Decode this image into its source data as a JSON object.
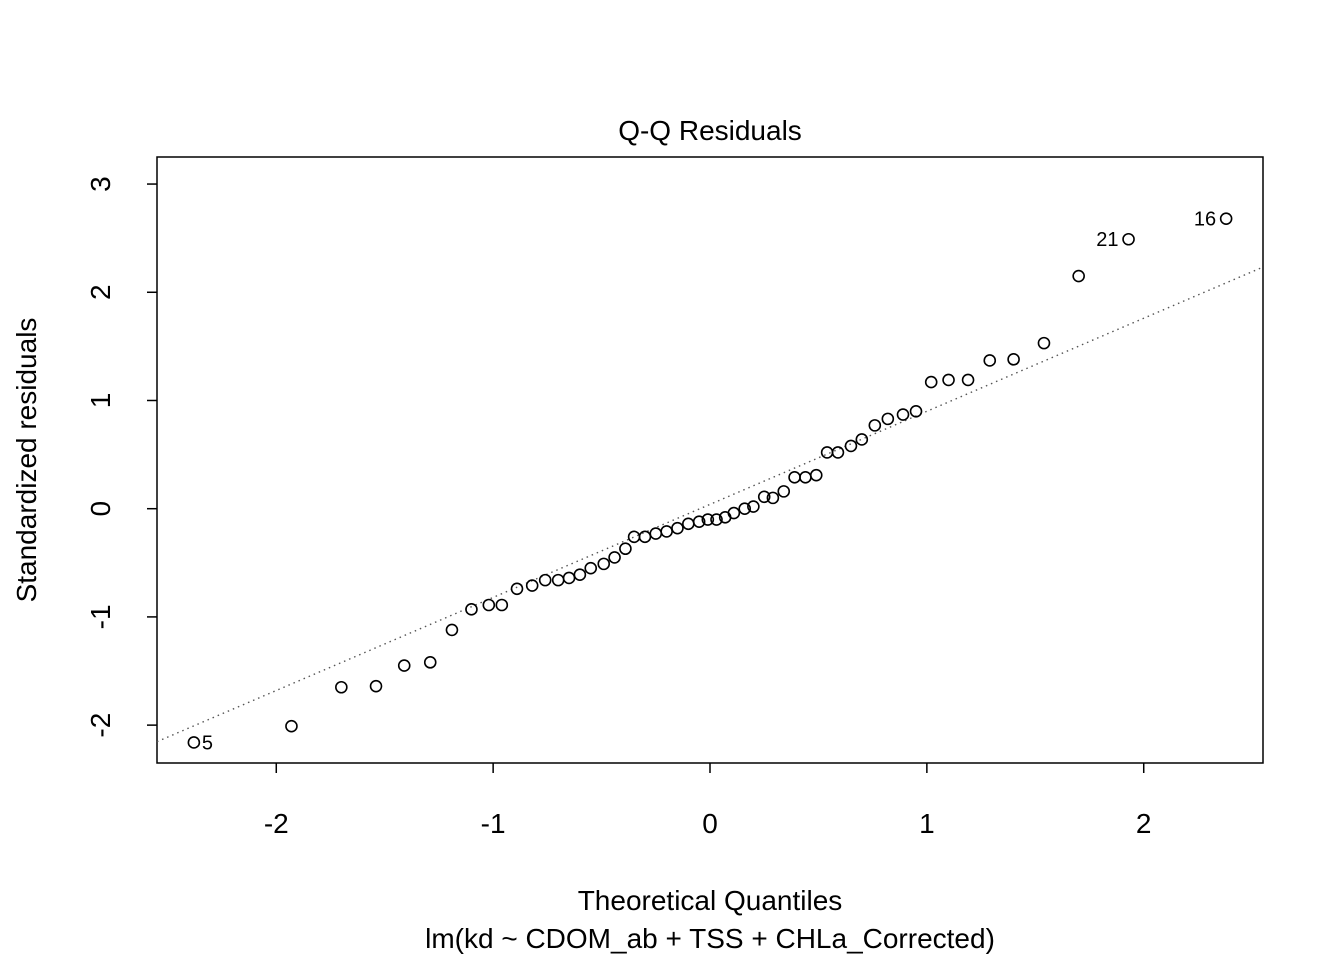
{
  "chart_data": {
    "type": "scatter",
    "title": "Q-Q Residuals",
    "xlabel": "Theoretical Quantiles",
    "subtitle": "lm(kd ~ CDOM_ab + TSS + CHLa_Corrected)",
    "ylabel": "Standardized residuals",
    "xlim": [
      -2.55,
      2.55
    ],
    "ylim": [
      -2.35,
      3.25
    ],
    "x_ticks": [
      -2,
      -1,
      0,
      1,
      2
    ],
    "y_ticks": [
      -2,
      -1,
      0,
      1,
      2,
      3
    ],
    "x_tick_labels": [
      "-2",
      "-1",
      "0",
      "1",
      "2"
    ],
    "y_tick_labels": [
      "-2",
      "-1",
      "0",
      "1",
      "2",
      "3"
    ],
    "grid": false,
    "reference_line": {
      "style": "dotted",
      "color": "#555555",
      "intercept": 0.04,
      "slope": 0.86
    },
    "points": [
      {
        "x": -2.38,
        "y": -2.16,
        "label": "5"
      },
      {
        "x": -1.93,
        "y": -2.01
      },
      {
        "x": -1.7,
        "y": -1.65
      },
      {
        "x": -1.54,
        "y": -1.64
      },
      {
        "x": -1.41,
        "y": -1.45
      },
      {
        "x": -1.29,
        "y": -1.42
      },
      {
        "x": -1.19,
        "y": -1.12
      },
      {
        "x": -1.1,
        "y": -0.93
      },
      {
        "x": -1.02,
        "y": -0.89
      },
      {
        "x": -0.96,
        "y": -0.89
      },
      {
        "x": -0.89,
        "y": -0.74
      },
      {
        "x": -0.82,
        "y": -0.71
      },
      {
        "x": -0.76,
        "y": -0.66
      },
      {
        "x": -0.7,
        "y": -0.66
      },
      {
        "x": -0.65,
        "y": -0.64
      },
      {
        "x": -0.6,
        "y": -0.61
      },
      {
        "x": -0.55,
        "y": -0.55
      },
      {
        "x": -0.49,
        "y": -0.51
      },
      {
        "x": -0.44,
        "y": -0.45
      },
      {
        "x": -0.39,
        "y": -0.37
      },
      {
        "x": -0.35,
        "y": -0.26
      },
      {
        "x": -0.3,
        "y": -0.26
      },
      {
        "x": -0.25,
        "y": -0.23
      },
      {
        "x": -0.2,
        "y": -0.21
      },
      {
        "x": -0.15,
        "y": -0.18
      },
      {
        "x": -0.1,
        "y": -0.14
      },
      {
        "x": -0.05,
        "y": -0.12
      },
      {
        "x": -0.01,
        "y": -0.1
      },
      {
        "x": 0.03,
        "y": -0.1
      },
      {
        "x": 0.07,
        "y": -0.08
      },
      {
        "x": 0.11,
        "y": -0.04
      },
      {
        "x": 0.16,
        "y": 0.0
      },
      {
        "x": 0.2,
        "y": 0.02
      },
      {
        "x": 0.25,
        "y": 0.11
      },
      {
        "x": 0.29,
        "y": 0.1
      },
      {
        "x": 0.34,
        "y": 0.16
      },
      {
        "x": 0.39,
        "y": 0.29
      },
      {
        "x": 0.44,
        "y": 0.29
      },
      {
        "x": 0.49,
        "y": 0.31
      },
      {
        "x": 0.54,
        "y": 0.52
      },
      {
        "x": 0.59,
        "y": 0.52
      },
      {
        "x": 0.65,
        "y": 0.58
      },
      {
        "x": 0.7,
        "y": 0.64
      },
      {
        "x": 0.76,
        "y": 0.77
      },
      {
        "x": 0.82,
        "y": 0.83
      },
      {
        "x": 0.89,
        "y": 0.87
      },
      {
        "x": 0.95,
        "y": 0.9
      },
      {
        "x": 1.02,
        "y": 1.17
      },
      {
        "x": 1.1,
        "y": 1.19
      },
      {
        "x": 1.19,
        "y": 1.19
      },
      {
        "x": 1.29,
        "y": 1.37
      },
      {
        "x": 1.4,
        "y": 1.38
      },
      {
        "x": 1.54,
        "y": 1.53
      },
      {
        "x": 1.7,
        "y": 2.15
      },
      {
        "x": 1.93,
        "y": 2.49,
        "label": "21"
      },
      {
        "x": 2.38,
        "y": 2.68,
        "label": "16"
      }
    ]
  }
}
